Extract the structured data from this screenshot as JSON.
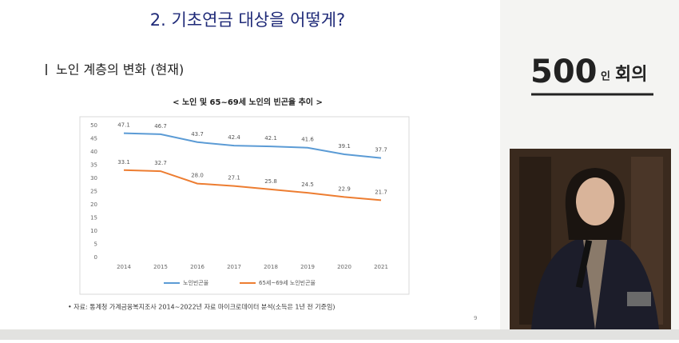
{
  "slide": {
    "title": "2. 기초연금 대상을 어떻게?",
    "subtitle": "노인 계층의 변화 (현재)",
    "source": "• 자료: 통계청 가계금융복지조사 2014~2022년 자료 마이크로데이터 분석(소득은 1년 전 기준임)",
    "page_number": "9"
  },
  "logo": {
    "number": "500",
    "small": "인",
    "word": "회의"
  },
  "chart_data": {
    "type": "line",
    "title": "< 노인 및 65~69세 노인의 빈곤율 추이 >",
    "categories": [
      "2014",
      "2015",
      "2016",
      "2017",
      "2018",
      "2019",
      "2020",
      "2021"
    ],
    "series": [
      {
        "name": "노인빈곤율",
        "color": "#5b9bd5",
        "values": [
          47.1,
          46.7,
          43.7,
          42.4,
          42.1,
          41.6,
          39.1,
          37.7
        ],
        "value_labels": [
          "47.1",
          "46.7",
          "43.7",
          "42.4",
          "42.1",
          "41.6",
          "39.1",
          "37.7"
        ]
      },
      {
        "name": "65세~69세 노인빈곤율",
        "color": "#ed7d31",
        "values": [
          33.1,
          32.7,
          28.0,
          27.1,
          25.8,
          24.5,
          22.9,
          21.7
        ],
        "value_labels": [
          "33.1",
          "32.7",
          "28.0",
          "27.1",
          "25.8",
          "24.5",
          "22.9",
          "21.7"
        ]
      }
    ],
    "ylim": [
      0,
      50
    ],
    "yticks": [
      0,
      5,
      10,
      15,
      20,
      25,
      30,
      35,
      40,
      45,
      50
    ],
    "grid": false
  }
}
